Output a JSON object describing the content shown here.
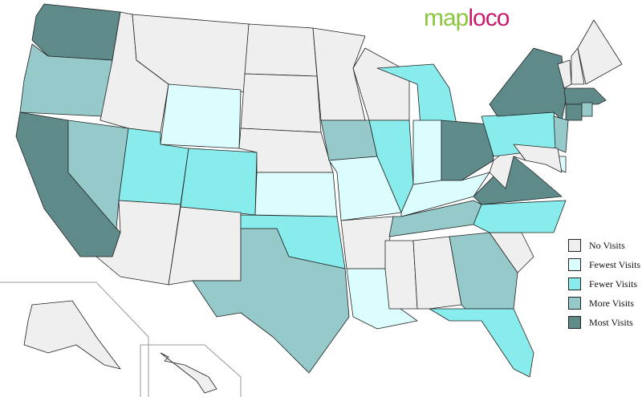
{
  "logo": {
    "part1": "map",
    "part2": "loco",
    "color1": "#8cc63f",
    "color2": "#cc1a6e"
  },
  "legend": [
    {
      "key": "none",
      "label": "No Visits",
      "color": "#efefef"
    },
    {
      "key": "fewest",
      "label": "Fewest Visits",
      "color": "#dcfdfd"
    },
    {
      "key": "fewer",
      "label": "Fewer Visits",
      "color": "#88ecec"
    },
    {
      "key": "more",
      "label": "More Visits",
      "color": "#96caca"
    },
    {
      "key": "most",
      "label": "Most Visits",
      "color": "#5f8a8a"
    }
  ],
  "states": {
    "WA": "most",
    "OR": "more",
    "CA": "most",
    "NV": "more",
    "ID": "none",
    "MT": "none",
    "WY": "fewest",
    "UT": "fewer",
    "AZ": "none",
    "CO": "fewer",
    "NM": "none",
    "ND": "none",
    "SD": "none",
    "NE": "none",
    "KS": "fewest",
    "OK": "fewer",
    "TX": "more",
    "MN": "none",
    "IA": "more",
    "MO": "fewest",
    "AR": "none",
    "LA": "fewest",
    "WI": "none",
    "IL": "fewer",
    "MI": "fewer",
    "IN": "fewest",
    "OH": "most",
    "KY": "fewest",
    "TN": "more",
    "MS": "none",
    "AL": "none",
    "GA": "more",
    "FL": "fewer",
    "SC": "none",
    "NC": "fewer",
    "VA": "most",
    "WV": "none",
    "PA": "fewer",
    "NY": "most",
    "VT": "none",
    "NH": "none",
    "ME": "none",
    "MA": "most",
    "CT": "most",
    "RI": "more",
    "NJ": "more",
    "DE": "fewest",
    "MD": "none",
    "AK": "none",
    "HI": "none"
  }
}
